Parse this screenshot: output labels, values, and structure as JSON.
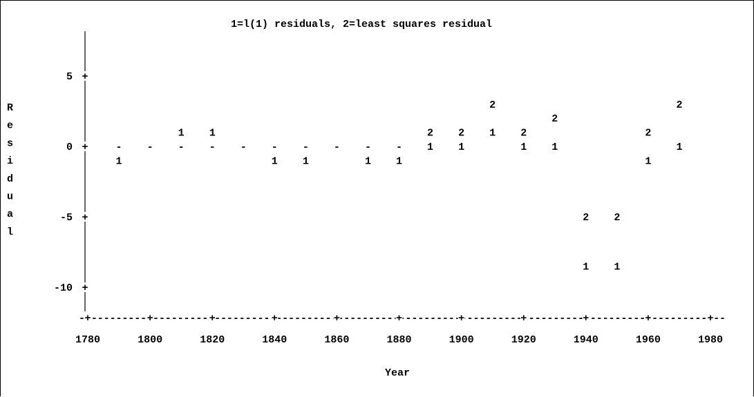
{
  "chart_data": {
    "type": "scatter",
    "title": "1=l(1) residuals, 2=least squares residual",
    "xlabel": "Year",
    "ylabel": "Residual",
    "xlim": [
      1780,
      1980
    ],
    "ylim": [
      -12,
      7
    ],
    "x_ticks": [
      1780,
      1800,
      1820,
      1840,
      1860,
      1880,
      1900,
      1920,
      1940,
      1960,
      1980
    ],
    "y_ticks": [
      5,
      0,
      -5,
      -10
    ],
    "grid": false,
    "legend": "none",
    "series": [
      {
        "symbol": "1",
        "points": [
          {
            "x": 1790,
            "y": -1
          },
          {
            "x": 1800,
            "y": 0
          },
          {
            "x": 1810,
            "y": 1
          },
          {
            "x": 1820,
            "y": 1
          },
          {
            "x": 1830,
            "y": 0
          },
          {
            "x": 1840,
            "y": -1
          },
          {
            "x": 1850,
            "y": -1
          },
          {
            "x": 1860,
            "y": 0
          },
          {
            "x": 1870,
            "y": -1
          },
          {
            "x": 1880,
            "y": -1
          },
          {
            "x": 1890,
            "y": 0
          },
          {
            "x": 1900,
            "y": 0
          },
          {
            "x": 1910,
            "y": 1
          },
          {
            "x": 1920,
            "y": 0
          },
          {
            "x": 1930,
            "y": 0
          },
          {
            "x": 1940,
            "y": -8.5
          },
          {
            "x": 1950,
            "y": -8.5
          },
          {
            "x": 1960,
            "y": -1
          },
          {
            "x": 1970,
            "y": 0
          }
        ]
      },
      {
        "symbol": "2",
        "points": [
          {
            "x": 1790,
            "y": 0
          },
          {
            "x": 1800,
            "y": 0
          },
          {
            "x": 1810,
            "y": 0
          },
          {
            "x": 1820,
            "y": 0
          },
          {
            "x": 1830,
            "y": 0
          },
          {
            "x": 1840,
            "y": 0
          },
          {
            "x": 1850,
            "y": 0
          },
          {
            "x": 1860,
            "y": 0
          },
          {
            "x": 1870,
            "y": 0
          },
          {
            "x": 1880,
            "y": 0
          },
          {
            "x": 1890,
            "y": 1
          },
          {
            "x": 1900,
            "y": 1
          },
          {
            "x": 1910,
            "y": 3
          },
          {
            "x": 1920,
            "y": 1
          },
          {
            "x": 1930,
            "y": 2
          },
          {
            "x": 1940,
            "y": -5
          },
          {
            "x": 1950,
            "y": -5
          },
          {
            "x": 1960,
            "y": 1
          },
          {
            "x": 1970,
            "y": 3
          }
        ]
      }
    ]
  }
}
